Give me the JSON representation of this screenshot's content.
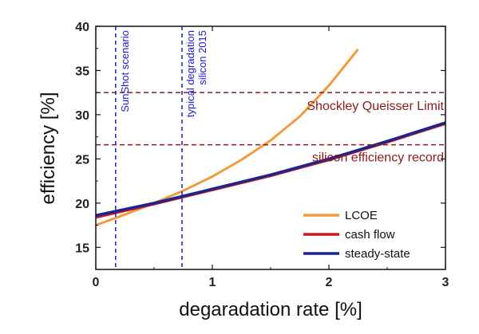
{
  "chart_data": {
    "type": "line",
    "xlabel": "degaradation rate [%]",
    "ylabel": "efficiency [%]",
    "xlim": [
      0,
      3
    ],
    "ylim": [
      12.5,
      40
    ],
    "xticks": [
      0,
      1,
      2,
      3
    ],
    "yticks": [
      15,
      20,
      25,
      30,
      35,
      40
    ],
    "grid": false,
    "legend_position": "bottom-right",
    "series": [
      {
        "name": "LCOE",
        "color": "#f39a3c",
        "x": [
          0,
          0.25,
          0.5,
          0.75,
          1.0,
          1.25,
          1.5,
          1.75,
          2.0,
          2.25
        ],
        "y": [
          17.5,
          18.7,
          20.0,
          21.4,
          23.0,
          24.9,
          27.1,
          29.8,
          33.3,
          37.4
        ]
      },
      {
        "name": "cash flow",
        "color": "#cc1a1a",
        "x": [
          0,
          0.5,
          1.0,
          1.5,
          2.0,
          2.5,
          3.0
        ],
        "y": [
          18.4,
          19.9,
          21.5,
          23.1,
          24.9,
          26.9,
          29.0
        ]
      },
      {
        "name": "steady-state",
        "color": "#1a2590",
        "x": [
          0,
          0.5,
          1.0,
          1.5,
          2.0,
          2.5,
          3.0
        ],
        "y": [
          18.6,
          20.0,
          21.6,
          23.2,
          25.0,
          27.0,
          29.1
        ]
      }
    ],
    "hlines": [
      {
        "y": 32.5,
        "label": "Shockley Queisser Limit",
        "color": "#8b1a1a"
      },
      {
        "y": 26.6,
        "label": "silicon efficiency record",
        "color": "#8b1a1a"
      }
    ],
    "vlines": [
      {
        "x": 0.17,
        "label": "SunShot scenario",
        "color": "#1a1acc"
      },
      {
        "x": 0.74,
        "label_lines": [
          "typical degradation",
          "silicon 2015"
        ],
        "color": "#1a1acc"
      }
    ]
  }
}
